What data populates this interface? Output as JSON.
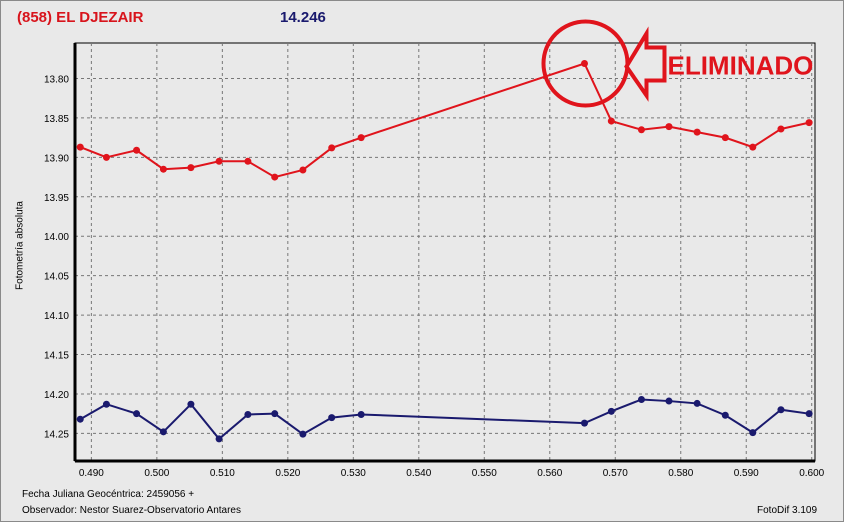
{
  "header": {
    "title": "(858) EL DJEZAIR",
    "magnitude": "14.246"
  },
  "annotation": {
    "label": "ELIMINADO",
    "color": "#e0141c"
  },
  "footer": {
    "date_label": "Fecha Juliana Geocéntrica: 2459056 +",
    "observer": "Observador: Nestor Suarez-Observatorio Antares",
    "software": "FotoDif 3.109"
  },
  "chart_data": {
    "type": "line",
    "title": "(858) EL DJEZAIR",
    "xlabel": "Fecha Juliana Geocéntrica: 2459056 +",
    "ylabel": "Fotometría absoluta",
    "xlim": [
      0.4875,
      0.6005
    ],
    "ylim": [
      13.755,
      14.285
    ],
    "y_inverted": true,
    "grid": true,
    "xticks": [
      "0.490",
      "0.500",
      "0.510",
      "0.520",
      "0.530",
      "0.540",
      "0.550",
      "0.560",
      "0.570",
      "0.580",
      "0.590",
      "0.600"
    ],
    "yticks": [
      "13.80",
      "13.85",
      "13.90",
      "13.95",
      "14.00",
      "14.05",
      "14.10",
      "14.15",
      "14.20",
      "14.25"
    ],
    "series": [
      {
        "color": "#e0141c",
        "x": [
          0.4883,
          0.4923,
          0.4969,
          0.501,
          0.5052,
          0.5095,
          0.5139,
          0.518,
          0.5223,
          0.5267,
          0.5312,
          0.5653,
          0.5694,
          0.574,
          0.5782,
          0.5825,
          0.5868,
          0.591,
          0.5953,
          0.5996
        ],
        "y": [
          13.887,
          13.9,
          13.891,
          13.915,
          13.913,
          13.905,
          13.905,
          13.925,
          13.916,
          13.888,
          13.875,
          13.781,
          13.854,
          13.865,
          13.861,
          13.868,
          13.875,
          13.887,
          13.864,
          13.856
        ]
      },
      {
        "color": "#1a1a6e",
        "x": [
          0.4883,
          0.4923,
          0.4969,
          0.501,
          0.5052,
          0.5095,
          0.5139,
          0.518,
          0.5223,
          0.5267,
          0.5312,
          0.5653,
          0.5694,
          0.574,
          0.5782,
          0.5825,
          0.5868,
          0.591,
          0.5953,
          0.5996
        ],
        "y": [
          14.232,
          14.213,
          14.225,
          14.248,
          14.213,
          14.257,
          14.226,
          14.225,
          14.251,
          14.23,
          14.226,
          14.237,
          14.222,
          14.207,
          14.209,
          14.212,
          14.227,
          14.249,
          14.22,
          14.225
        ]
      }
    ],
    "eliminated_point": {
      "x": 0.5653,
      "y": 13.781
    }
  }
}
